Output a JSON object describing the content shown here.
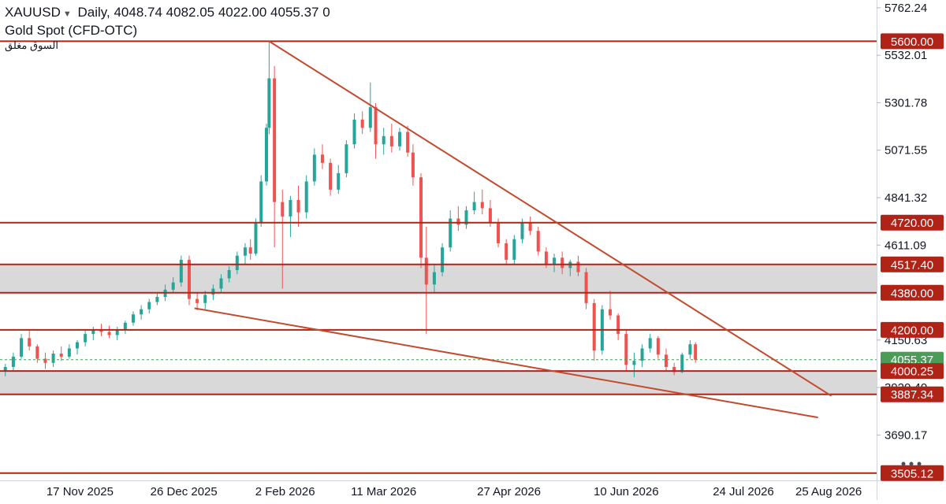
{
  "header": {
    "symbol": "XAUUSD",
    "interval": "Daily",
    "open": "4048.74",
    "high": "4082.05",
    "low": "4022.00",
    "close": "4055.37",
    "change": "0",
    "name": "Gold  Spot (CFD-OTC)",
    "market_status": "السوق مغلق"
  },
  "chart_data": {
    "type": "candlestick",
    "y_range": [
      3470,
      5800
    ],
    "x_range_dates": [
      "2025-10-18",
      "2026-09-12"
    ],
    "y_ticks": [
      "5762.24",
      "5532.01",
      "5301.78",
      "5071.55",
      "4841.32",
      "4611.09",
      "4150.63",
      "3920.40",
      "3690.17"
    ],
    "x_ticks": [
      {
        "date": "2025-11-17",
        "label": "17 Nov 2025"
      },
      {
        "date": "2025-12-26",
        "label": "26 Dec 2025"
      },
      {
        "date": "2026-02-02",
        "label": "2 Feb 2026"
      },
      {
        "date": "2026-03-11",
        "label": "11 Mar 2026"
      },
      {
        "date": "2026-04-27",
        "label": "27 Apr 2026"
      },
      {
        "date": "2026-06-10",
        "label": "10 Jun 2026"
      },
      {
        "date": "2026-07-24",
        "label": "24 Jul 2026"
      },
      {
        "date": "2026-08-25",
        "label": "25 Aug 2026"
      }
    ],
    "horizontal_levels": [
      "5600.00",
      "4720.00",
      "4517.40",
      "4380.00",
      "4200.00",
      "4000.25",
      "3887.34",
      "3505.12"
    ],
    "zones": [
      {
        "from": 4380.0,
        "to": 4517.4
      },
      {
        "from": 3887.34,
        "to": 4000.25
      }
    ],
    "trendlines": [
      {
        "from": {
          "date": "2026-01-27",
          "value": 5600
        },
        "to": {
          "date": "2026-08-26",
          "value": 3880
        }
      },
      {
        "from": {
          "date": "2025-12-30",
          "value": 4305
        },
        "to": {
          "date": "2026-08-21",
          "value": 3775
        }
      }
    ],
    "current_price": "4055.37",
    "candles": [
      {
        "date": "2025-10-20",
        "o": 4000,
        "h": 4035,
        "l": 3975,
        "c": 4020
      },
      {
        "date": "2025-10-23",
        "o": 4020,
        "h": 4090,
        "l": 4000,
        "c": 4070
      },
      {
        "date": "2025-10-26",
        "o": 4070,
        "h": 4180,
        "l": 4060,
        "c": 4160
      },
      {
        "date": "2025-10-29",
        "o": 4160,
        "h": 4195,
        "l": 4100,
        "c": 4120
      },
      {
        "date": "2025-11-01",
        "o": 4120,
        "h": 4130,
        "l": 4040,
        "c": 4060
      },
      {
        "date": "2025-11-04",
        "o": 4060,
        "h": 4090,
        "l": 4010,
        "c": 4040
      },
      {
        "date": "2025-11-07",
        "o": 4040,
        "h": 4100,
        "l": 4020,
        "c": 4085
      },
      {
        "date": "2025-11-10",
        "o": 4085,
        "h": 4120,
        "l": 4050,
        "c": 4070
      },
      {
        "date": "2025-11-13",
        "o": 4070,
        "h": 4130,
        "l": 4060,
        "c": 4110
      },
      {
        "date": "2025-11-16",
        "o": 4110,
        "h": 4150,
        "l": 4080,
        "c": 4140
      },
      {
        "date": "2025-11-19",
        "o": 4140,
        "h": 4200,
        "l": 4120,
        "c": 4180
      },
      {
        "date": "2025-11-22",
        "o": 4180,
        "h": 4215,
        "l": 4150,
        "c": 4200
      },
      {
        "date": "2025-11-25",
        "o": 4200,
        "h": 4230,
        "l": 4170,
        "c": 4190
      },
      {
        "date": "2025-11-28",
        "o": 4190,
        "h": 4220,
        "l": 4160,
        "c": 4175
      },
      {
        "date": "2025-12-01",
        "o": 4175,
        "h": 4215,
        "l": 4150,
        "c": 4200
      },
      {
        "date": "2025-12-04",
        "o": 4200,
        "h": 4245,
        "l": 4180,
        "c": 4235
      },
      {
        "date": "2025-12-07",
        "o": 4235,
        "h": 4290,
        "l": 4220,
        "c": 4275
      },
      {
        "date": "2025-12-10",
        "o": 4275,
        "h": 4320,
        "l": 4250,
        "c": 4300
      },
      {
        "date": "2025-12-13",
        "o": 4300,
        "h": 4350,
        "l": 4280,
        "c": 4335
      },
      {
        "date": "2025-12-16",
        "o": 4335,
        "h": 4380,
        "l": 4320,
        "c": 4360
      },
      {
        "date": "2025-12-19",
        "o": 4360,
        "h": 4420,
        "l": 4340,
        "c": 4395
      },
      {
        "date": "2025-12-22",
        "o": 4395,
        "h": 4455,
        "l": 4380,
        "c": 4430
      },
      {
        "date": "2025-12-25",
        "o": 4430,
        "h": 4560,
        "l": 4410,
        "c": 4540
      },
      {
        "date": "2025-12-28",
        "o": 4540,
        "h": 4560,
        "l": 4320,
        "c": 4350
      },
      {
        "date": "2025-12-31",
        "o": 4350,
        "h": 4380,
        "l": 4295,
        "c": 4330
      },
      {
        "date": "2026-01-03",
        "o": 4330,
        "h": 4390,
        "l": 4300,
        "c": 4370
      },
      {
        "date": "2026-01-06",
        "o": 4370,
        "h": 4420,
        "l": 4345,
        "c": 4400
      },
      {
        "date": "2026-01-09",
        "o": 4400,
        "h": 4470,
        "l": 4380,
        "c": 4450
      },
      {
        "date": "2026-01-12",
        "o": 4450,
        "h": 4510,
        "l": 4430,
        "c": 4490
      },
      {
        "date": "2026-01-15",
        "o": 4490,
        "h": 4580,
        "l": 4470,
        "c": 4560
      },
      {
        "date": "2026-01-18",
        "o": 4560,
        "h": 4620,
        "l": 4520,
        "c": 4600
      },
      {
        "date": "2026-01-20",
        "o": 4600,
        "h": 4640,
        "l": 4540,
        "c": 4570
      },
      {
        "date": "2026-01-22",
        "o": 4570,
        "h": 4740,
        "l": 4560,
        "c": 4720
      },
      {
        "date": "2026-01-24",
        "o": 4720,
        "h": 4950,
        "l": 4700,
        "c": 4920
      },
      {
        "date": "2026-01-26",
        "o": 4920,
        "h": 5200,
        "l": 4900,
        "c": 5180
      },
      {
        "date": "2026-01-27",
        "o": 5180,
        "h": 5600,
        "l": 5150,
        "c": 5420
      },
      {
        "date": "2026-01-29",
        "o": 5420,
        "h": 5480,
        "l": 4600,
        "c": 4820
      },
      {
        "date": "2026-02-01",
        "o": 4820,
        "h": 4880,
        "l": 4400,
        "c": 4750
      },
      {
        "date": "2026-02-04",
        "o": 4750,
        "h": 4850,
        "l": 4650,
        "c": 4830
      },
      {
        "date": "2026-02-07",
        "o": 4830,
        "h": 4900,
        "l": 4700,
        "c": 4770
      },
      {
        "date": "2026-02-10",
        "o": 4770,
        "h": 4950,
        "l": 4740,
        "c": 4920
      },
      {
        "date": "2026-02-13",
        "o": 4920,
        "h": 5080,
        "l": 4900,
        "c": 5050
      },
      {
        "date": "2026-02-16",
        "o": 5050,
        "h": 5100,
        "l": 4980,
        "c": 5010
      },
      {
        "date": "2026-02-19",
        "o": 5010,
        "h": 5030,
        "l": 4850,
        "c": 4880
      },
      {
        "date": "2026-02-22",
        "o": 4880,
        "h": 5000,
        "l": 4860,
        "c": 4960
      },
      {
        "date": "2026-02-25",
        "o": 4960,
        "h": 5120,
        "l": 4940,
        "c": 5100
      },
      {
        "date": "2026-02-28",
        "o": 5100,
        "h": 5250,
        "l": 5080,
        "c": 5220
      },
      {
        "date": "2026-03-03",
        "o": 5220,
        "h": 5260,
        "l": 5150,
        "c": 5180
      },
      {
        "date": "2026-03-06",
        "o": 5180,
        "h": 5400,
        "l": 5160,
        "c": 5280
      },
      {
        "date": "2026-03-08",
        "o": 5280,
        "h": 5300,
        "l": 5030,
        "c": 5100
      },
      {
        "date": "2026-03-11",
        "o": 5100,
        "h": 5180,
        "l": 5050,
        "c": 5140
      },
      {
        "date": "2026-03-14",
        "o": 5140,
        "h": 5200,
        "l": 5060,
        "c": 5090
      },
      {
        "date": "2026-03-17",
        "o": 5090,
        "h": 5180,
        "l": 5070,
        "c": 5160
      },
      {
        "date": "2026-03-20",
        "o": 5160,
        "h": 5190,
        "l": 5040,
        "c": 5060
      },
      {
        "date": "2026-03-22",
        "o": 5060,
        "h": 5100,
        "l": 4900,
        "c": 4940
      },
      {
        "date": "2026-03-25",
        "o": 4940,
        "h": 4960,
        "l": 4500,
        "c": 4550
      },
      {
        "date": "2026-03-27",
        "o": 4550,
        "h": 4700,
        "l": 4180,
        "c": 4420
      },
      {
        "date": "2026-03-30",
        "o": 4420,
        "h": 4520,
        "l": 4380,
        "c": 4480
      },
      {
        "date": "2026-04-02",
        "o": 4480,
        "h": 4620,
        "l": 4460,
        "c": 4600
      },
      {
        "date": "2026-04-05",
        "o": 4600,
        "h": 4780,
        "l": 4580,
        "c": 4740
      },
      {
        "date": "2026-04-08",
        "o": 4740,
        "h": 4800,
        "l": 4680,
        "c": 4710
      },
      {
        "date": "2026-04-11",
        "o": 4710,
        "h": 4800,
        "l": 4690,
        "c": 4780
      },
      {
        "date": "2026-04-14",
        "o": 4780,
        "h": 4870,
        "l": 4760,
        "c": 4820
      },
      {
        "date": "2026-04-17",
        "o": 4820,
        "h": 4880,
        "l": 4760,
        "c": 4790
      },
      {
        "date": "2026-04-20",
        "o": 4790,
        "h": 4830,
        "l": 4700,
        "c": 4720
      },
      {
        "date": "2026-04-23",
        "o": 4720,
        "h": 4740,
        "l": 4600,
        "c": 4620
      },
      {
        "date": "2026-04-26",
        "o": 4620,
        "h": 4640,
        "l": 4520,
        "c": 4540
      },
      {
        "date": "2026-04-29",
        "o": 4540,
        "h": 4660,
        "l": 4520,
        "c": 4640
      },
      {
        "date": "2026-05-02",
        "o": 4640,
        "h": 4740,
        "l": 4620,
        "c": 4720
      },
      {
        "date": "2026-05-05",
        "o": 4720,
        "h": 4750,
        "l": 4660,
        "c": 4680
      },
      {
        "date": "2026-05-08",
        "o": 4680,
        "h": 4700,
        "l": 4560,
        "c": 4580
      },
      {
        "date": "2026-05-11",
        "o": 4580,
        "h": 4600,
        "l": 4500,
        "c": 4520
      },
      {
        "date": "2026-05-14",
        "o": 4520,
        "h": 4570,
        "l": 4480,
        "c": 4550
      },
      {
        "date": "2026-05-17",
        "o": 4550,
        "h": 4580,
        "l": 4470,
        "c": 4500
      },
      {
        "date": "2026-05-20",
        "o": 4500,
        "h": 4540,
        "l": 4460,
        "c": 4530
      },
      {
        "date": "2026-05-23",
        "o": 4530,
        "h": 4560,
        "l": 4460,
        "c": 4480
      },
      {
        "date": "2026-05-26",
        "o": 4480,
        "h": 4500,
        "l": 4300,
        "c": 4330
      },
      {
        "date": "2026-05-29",
        "o": 4330,
        "h": 4350,
        "l": 4050,
        "c": 4100
      },
      {
        "date": "2026-06-01",
        "o": 4100,
        "h": 4320,
        "l": 4080,
        "c": 4300
      },
      {
        "date": "2026-06-04",
        "o": 4300,
        "h": 4390,
        "l": 4250,
        "c": 4270
      },
      {
        "date": "2026-06-07",
        "o": 4270,
        "h": 4280,
        "l": 4150,
        "c": 4180
      },
      {
        "date": "2026-06-10",
        "o": 4180,
        "h": 4200,
        "l": 4000,
        "c": 4030
      },
      {
        "date": "2026-06-13",
        "o": 4030,
        "h": 4090,
        "l": 3970,
        "c": 4050
      },
      {
        "date": "2026-06-16",
        "o": 4050,
        "h": 4130,
        "l": 4020,
        "c": 4110
      },
      {
        "date": "2026-06-19",
        "o": 4110,
        "h": 4180,
        "l": 4090,
        "c": 4160
      },
      {
        "date": "2026-06-22",
        "o": 4160,
        "h": 4170,
        "l": 4060,
        "c": 4080
      },
      {
        "date": "2026-06-25",
        "o": 4080,
        "h": 4110,
        "l": 4000,
        "c": 4020
      },
      {
        "date": "2026-06-28",
        "o": 4020,
        "h": 4040,
        "l": 3980,
        "c": 3995
      },
      {
        "date": "2026-07-01",
        "o": 3995,
        "h": 4090,
        "l": 3990,
        "c": 4080
      },
      {
        "date": "2026-07-04",
        "o": 4080,
        "h": 4150,
        "l": 4060,
        "c": 4130
      },
      {
        "date": "2026-07-06",
        "o": 4130,
        "h": 4140,
        "l": 4040,
        "c": 4055
      }
    ]
  },
  "axis_labels": [
    {
      "text": "5600.00",
      "color": "#b02418"
    },
    {
      "text": "4720.00",
      "color": "#b02418"
    },
    {
      "text": "4517.40",
      "color": "#b02418"
    },
    {
      "text": "4380.00",
      "color": "#b02418"
    },
    {
      "text": "4200.00",
      "color": "#b02418"
    },
    {
      "text": "4055.37",
      "color": "#4a9c57"
    },
    {
      "text": "4000.25",
      "color": "#b02418"
    },
    {
      "text": "3887.34",
      "color": "#b02418"
    },
    {
      "text": "3505.12",
      "color": "#b02418"
    }
  ],
  "colors": {
    "up": "#26a69a",
    "down": "#ef5350",
    "level_line": "#b02418",
    "trend_line": "#c44a2e",
    "zone_fill": "#d9d9d9",
    "axis_text": "#131722",
    "grid": "#f0f3fa",
    "price_line": "#4a9c57"
  }
}
